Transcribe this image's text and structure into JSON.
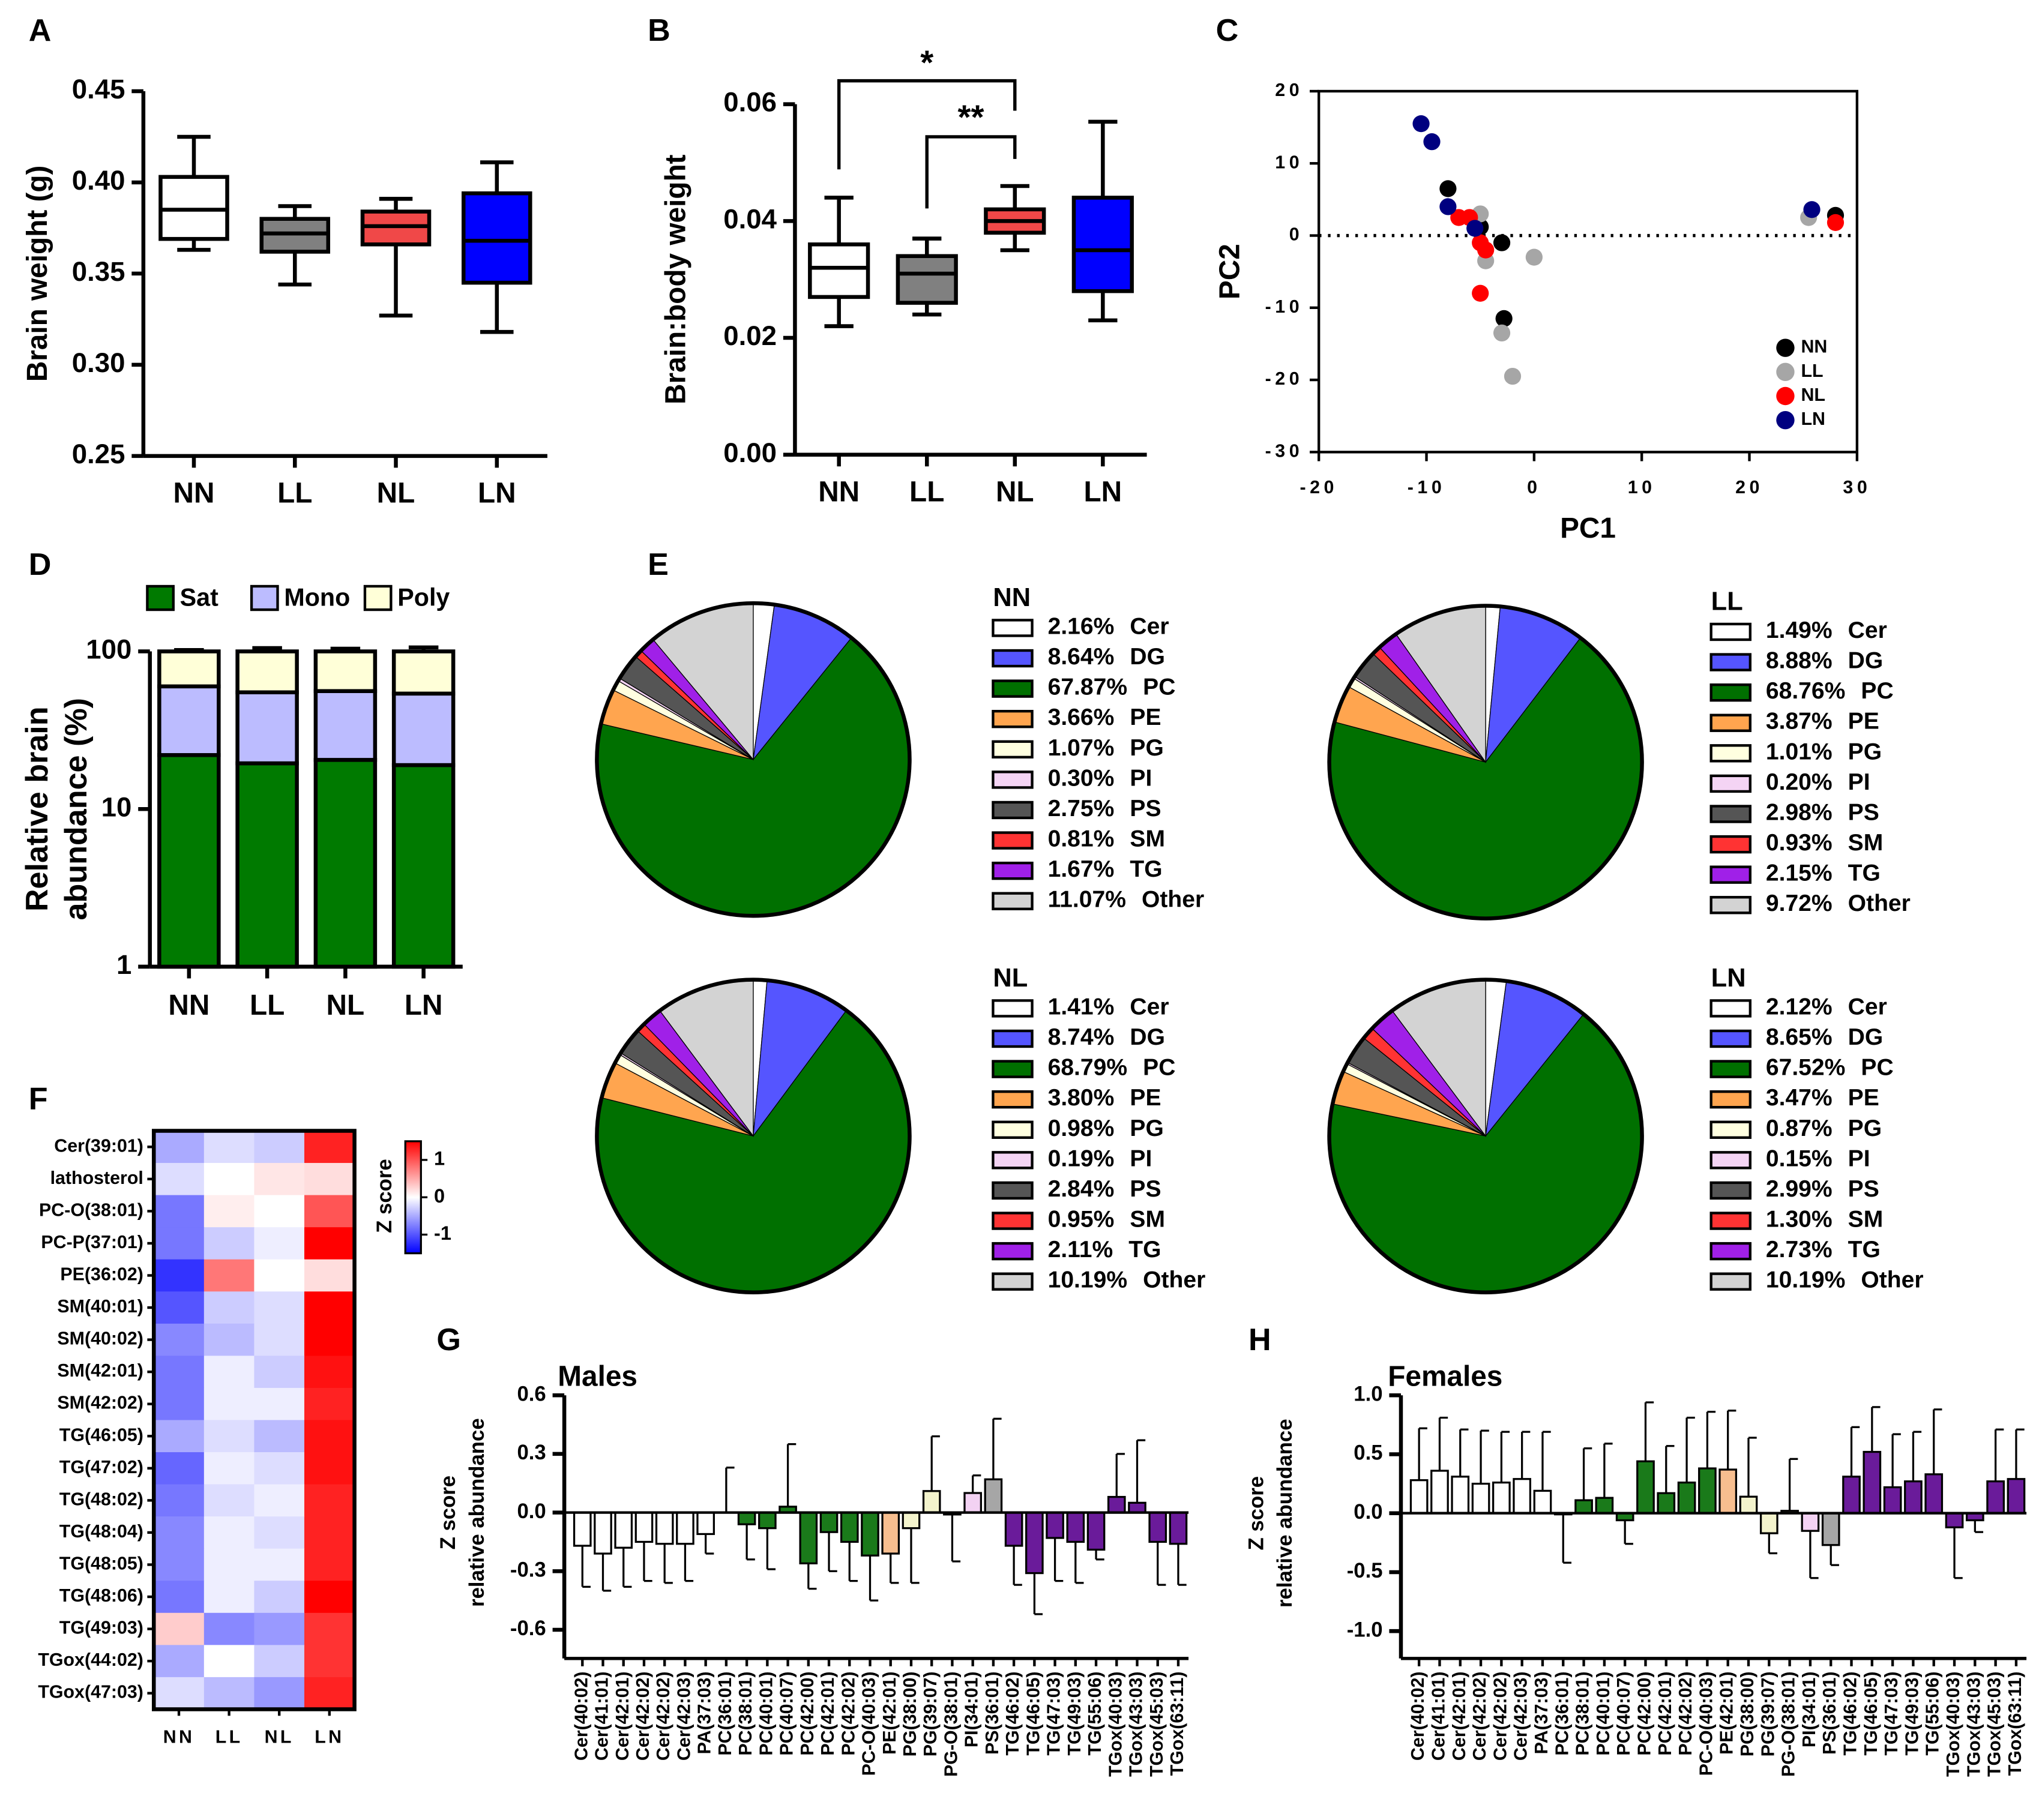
{
  "chart_data": [
    {
      "type": "box",
      "panel": "A",
      "ylabel": "Brain weight (g)",
      "categories": [
        "NN",
        "LL",
        "NL",
        "LN"
      ],
      "colors": [
        "#ffffff",
        "#808080",
        "#f04848",
        "#0000ff"
      ],
      "boxes": [
        {
          "min": 0.363,
          "q1": 0.369,
          "median": 0.385,
          "q3": 0.403,
          "max": 0.425
        },
        {
          "min": 0.344,
          "q1": 0.362,
          "median": 0.372,
          "q3": 0.38,
          "max": 0.387
        },
        {
          "min": 0.327,
          "q1": 0.366,
          "median": 0.376,
          "q3": 0.384,
          "max": 0.391
        },
        {
          "min": 0.318,
          "q1": 0.345,
          "median": 0.368,
          "q3": 0.394,
          "max": 0.411
        }
      ],
      "ylim": [
        0.25,
        0.45
      ],
      "yticks": [
        {
          "value": 0.25,
          "label": "0.25"
        },
        {
          "value": 0.3,
          "label": "0.30"
        },
        {
          "value": 0.35,
          "label": "0.35"
        },
        {
          "value": 0.4,
          "label": "0.40"
        },
        {
          "value": 0.45,
          "label": "0.45"
        }
      ]
    },
    {
      "type": "box",
      "panel": "B",
      "ylabel": "Brain:body weight",
      "categories": [
        "NN",
        "LL",
        "NL",
        "LN"
      ],
      "colors": [
        "#ffffff",
        "#808080",
        "#f04848",
        "#0000ff"
      ],
      "boxes": [
        {
          "min": 0.022,
          "q1": 0.027,
          "median": 0.032,
          "q3": 0.036,
          "max": 0.044
        },
        {
          "min": 0.024,
          "q1": 0.026,
          "median": 0.031,
          "q3": 0.034,
          "max": 0.037
        },
        {
          "min": 0.035,
          "q1": 0.038,
          "median": 0.04,
          "q3": 0.042,
          "max": 0.046
        },
        {
          "min": 0.023,
          "q1": 0.028,
          "median": 0.035,
          "q3": 0.044,
          "max": 0.057
        }
      ],
      "annotations": [
        "*",
        "**"
      ],
      "ylim": [
        0,
        0.06
      ],
      "yticks": [
        {
          "value": 0,
          "label": "0.00"
        },
        {
          "value": 0.02,
          "label": "0.02"
        },
        {
          "value": 0.04,
          "label": "0.04"
        },
        {
          "value": 0.06,
          "label": "0.06"
        }
      ]
    },
    {
      "type": "scatter",
      "panel": "C",
      "xlabel": "PC1",
      "ylabel": "PC2",
      "series": [
        {
          "name": "NN",
          "color": "#000000",
          "x": [
            -8,
            -5,
            -3,
            -2.8,
            28
          ],
          "y": [
            6.5,
            1.2,
            -1,
            -11.5,
            2.8
          ]
        },
        {
          "name": "LL",
          "color": "#a6a6a6",
          "x": [
            -5,
            -4.5,
            -3,
            -2,
            0,
            25.5
          ],
          "y": [
            3,
            -3.5,
            -13.5,
            -19.5,
            -3,
            2.5
          ]
        },
        {
          "name": "NL",
          "color": "#ff0000",
          "x": [
            -7,
            -6,
            -5,
            -4.5,
            -5,
            28
          ],
          "y": [
            2.5,
            2.5,
            -1,
            -2,
            -8,
            1.8
          ]
        },
        {
          "name": "LN",
          "color": "#000080",
          "x": [
            -10.5,
            -9.5,
            -8,
            -5.5,
            25.8
          ],
          "y": [
            15.5,
            13,
            4,
            1,
            3.6
          ]
        }
      ],
      "xlim": [
        -20,
        30
      ],
      "xticks": [
        -20,
        -10,
        0,
        10,
        20,
        30
      ],
      "ylim": [
        -30,
        20
      ],
      "yticks": [
        -30,
        -20,
        -10,
        0,
        10,
        20
      ],
      "legend": "lower right",
      "zero_line": true
    },
    {
      "type": "stacked_bar",
      "panel": "D",
      "ylabel": [
        "Relative brain",
        "abundance (%)"
      ],
      "categories": [
        "NN",
        "LL",
        "NL",
        "LN"
      ],
      "series": [
        {
          "name": "Sat",
          "color": "#007a00",
          "values": [
            22,
            19.5,
            20.5,
            19
          ],
          "errors": [
            2,
            1.2,
            1,
            1
          ]
        },
        {
          "name": "Mono",
          "color": "#bcbcff",
          "values": [
            38,
            35.5,
            35.5,
            35
          ],
          "errors": [
            3,
            5,
            5,
            6
          ]
        },
        {
          "name": "Poly",
          "color": "#ffffd8",
          "values": [
            40,
            45,
            44,
            46
          ],
          "errors": [
            2,
            5,
            4,
            6
          ]
        }
      ],
      "ylim": [
        1,
        100
      ],
      "yticks": [
        1,
        10,
        100
      ],
      "log_y": true,
      "legend": "top"
    },
    {
      "type": "pie",
      "panel": "E",
      "title": "NN",
      "categories": [
        "Cer",
        "DG",
        "PC",
        "PE",
        "PG",
        "PI",
        "PS",
        "SM",
        "TG",
        "Other"
      ],
      "values": [
        2.16,
        8.64,
        67.87,
        3.66,
        1.07,
        0.3,
        2.75,
        0.81,
        1.67,
        11.07
      ],
      "value_labels": [
        "2.16%",
        "8.64%",
        "67.87%",
        "3.66%",
        "1.07%",
        "0.30%",
        "2.75%",
        "0.81%",
        "1.67%",
        "11.07%"
      ],
      "colors": [
        "#ffffff",
        "#5555ff",
        "#007000",
        "#ffa54f",
        "#ffffe0",
        "#f4d4f4",
        "#555555",
        "#ff3333",
        "#a020e8",
        "#d3d3d3"
      ]
    },
    {
      "type": "pie",
      "title": "LL",
      "categories": [
        "Cer",
        "DG",
        "PC",
        "PE",
        "PG",
        "PI",
        "PS",
        "SM",
        "TG",
        "Other"
      ],
      "values": [
        1.49,
        8.88,
        68.76,
        3.87,
        1.01,
        0.2,
        2.98,
        0.93,
        2.15,
        9.72
      ],
      "value_labels": [
        "1.49%",
        "8.88%",
        "68.76%",
        "3.87%",
        "1.01%",
        "0.20%",
        "2.98%",
        "0.93%",
        "2.15%",
        "9.72%"
      ],
      "colors": [
        "#ffffff",
        "#5555ff",
        "#007000",
        "#ffa54f",
        "#ffffe0",
        "#f4d4f4",
        "#555555",
        "#ff3333",
        "#a020e8",
        "#d3d3d3"
      ]
    },
    {
      "type": "pie",
      "title": "NL",
      "categories": [
        "Cer",
        "DG",
        "PC",
        "PE",
        "PG",
        "PI",
        "PS",
        "SM",
        "TG",
        "Other"
      ],
      "values": [
        1.41,
        8.74,
        68.79,
        3.8,
        0.98,
        0.19,
        2.84,
        0.95,
        2.11,
        10.19
      ],
      "value_labels": [
        "1.41%",
        "8.74%",
        "68.79%",
        "3.80%",
        "0.98%",
        "0.19%",
        "2.84%",
        "0.95%",
        "2.11%",
        "10.19%"
      ],
      "colors": [
        "#ffffff",
        "#5555ff",
        "#007000",
        "#ffa54f",
        "#ffffe0",
        "#f4d4f4",
        "#555555",
        "#ff3333",
        "#a020e8",
        "#d3d3d3"
      ]
    },
    {
      "type": "pie",
      "title": "LN",
      "categories": [
        "Cer",
        "DG",
        "PC",
        "PE",
        "PG",
        "PI",
        "PS",
        "SM",
        "TG",
        "Other"
      ],
      "values": [
        2.12,
        8.65,
        67.52,
        3.47,
        0.87,
        0.15,
        2.99,
        1.3,
        2.73,
        10.19
      ],
      "value_labels": [
        "2.12%",
        "8.65%",
        "67.52%",
        "3.47%",
        "0.87%",
        "0.15%",
        "2.99%",
        "1.30%",
        "2.73%",
        "10.19%"
      ],
      "colors": [
        "#ffffff",
        "#5555ff",
        "#007000",
        "#ffa54f",
        "#ffffe0",
        "#f4d4f4",
        "#555555",
        "#ff3333",
        "#a020e8",
        "#d3d3d3"
      ]
    },
    {
      "type": "heatmap",
      "panel": "F",
      "colorbar_label": "Z score",
      "columns": [
        "NN",
        "LL",
        "NL",
        "LN"
      ],
      "rows": [
        "Cer(39:01)",
        "lathosterol",
        "PC-O(38:01)",
        "PC-P(37:01)",
        "PE(36:02)",
        "SM(40:01)",
        "SM(40:02)",
        "SM(42:01)",
        "SM(42:02)",
        "TG(46:05)",
        "TG(47:02)",
        "TG(48:02)",
        "TG(48:04)",
        "TG(48:05)",
        "TG(48:06)",
        "TG(49:03)",
        "TGox(44:02)",
        "TGox(47:03)"
      ],
      "values": [
        [
          -0.5,
          -0.2,
          -0.3,
          1.3
        ],
        [
          -0.2,
          0,
          0.15,
          0.2
        ],
        [
          -0.8,
          0.1,
          0,
          1.0
        ],
        [
          -0.8,
          -0.3,
          -0.1,
          1.5
        ],
        [
          -1.2,
          0.8,
          0,
          0.2
        ],
        [
          -1.0,
          -0.3,
          -0.2,
          1.6
        ],
        [
          -0.7,
          -0.4,
          -0.2,
          1.5
        ],
        [
          -0.8,
          -0.1,
          -0.3,
          1.4
        ],
        [
          -0.8,
          -0.1,
          -0.1,
          1.3
        ],
        [
          -0.5,
          -0.2,
          -0.4,
          1.4
        ],
        [
          -0.9,
          -0.1,
          -0.2,
          1.4
        ],
        [
          -0.8,
          -0.2,
          -0.1,
          1.3
        ],
        [
          -0.7,
          -0.1,
          -0.2,
          1.3
        ],
        [
          -0.7,
          -0.1,
          -0.1,
          1.3
        ],
        [
          -0.8,
          -0.1,
          -0.3,
          1.5
        ],
        [
          0.3,
          -0.7,
          -0.6,
          1.2
        ],
        [
          -0.5,
          0,
          -0.3,
          1.2
        ],
        [
          -0.2,
          -0.4,
          -0.6,
          1.3
        ]
      ],
      "zlim": [
        -1.5,
        1.5
      ],
      "zticks": [
        1,
        0,
        -1
      ]
    },
    {
      "type": "bar",
      "panel": "G",
      "title": "Males",
      "ylabel": [
        "Z score",
        "relative abundance"
      ],
      "categories": [
        "Cer(40:02)",
        "Cer(41:01)",
        "Cer(42:01)",
        "Cer(42:02)",
        "Cer(42:02)",
        "Cer(42:03)",
        "PA(37:03)",
        "PC(36:01)",
        "PC(38:01)",
        "PC(40:01)",
        "PC(40:07)",
        "PC(42:00)",
        "PC(42:01)",
        "PC(42:02)",
        "PC-O(40:03)",
        "PE(42:01)",
        "PG(38:00)",
        "PG(39:07)",
        "PG-O(38:01)",
        "PI(34:01)",
        "PS(36:01)",
        "TG(46:02)",
        "TG(46:05)",
        "TG(47:03)",
        "TG(49:03)",
        "TG(55:06)",
        "TGox(40:03)",
        "TGox(43:03)",
        "TGox(45:03)",
        "TGox(63:11)"
      ],
      "values": [
        -0.17,
        -0.21,
        -0.18,
        -0.15,
        -0.16,
        -0.16,
        -0.11,
        0,
        -0.06,
        -0.08,
        0.03,
        -0.26,
        -0.1,
        -0.15,
        -0.22,
        -0.21,
        -0.08,
        0.11,
        -0.01,
        0.1,
        0.17,
        -0.17,
        -0.31,
        -0.13,
        -0.15,
        -0.19,
        0.08,
        0.05,
        -0.15,
        -0.16
      ],
      "errors": [
        0.21,
        0.19,
        0.2,
        0.2,
        0.2,
        0.19,
        0.1,
        0.23,
        0.18,
        0.21,
        0.32,
        0.13,
        0.2,
        0.2,
        0.23,
        0.15,
        0.28,
        0.28,
        0.24,
        0.09,
        0.31,
        0.2,
        0.21,
        0.22,
        0.21,
        0.05,
        0.22,
        0.32,
        0.22,
        0.21
      ],
      "colors": [
        "#ffffff",
        "#ffffff",
        "#ffffff",
        "#ffffff",
        "#ffffff",
        "#ffffff",
        "#ffffff",
        "#1a7a1a",
        "#1a7a1a",
        "#1a7a1a",
        "#1a7a1a",
        "#1a7a1a",
        "#1a7a1a",
        "#1a7a1a",
        "#1a7a1a",
        "#f7be8f",
        "#f3f3cc",
        "#f3f3cc",
        "#f3f3cc",
        "#f3d2f3",
        "#a6a6a6",
        "#6a1b9a",
        "#6a1b9a",
        "#6a1b9a",
        "#6a1b9a",
        "#6a1b9a",
        "#6a1b9a",
        "#6a1b9a",
        "#6a1b9a",
        "#6a1b9a"
      ],
      "ylim": [
        -0.6,
        0.6
      ],
      "yticks": [
        0.6,
        0.3,
        {
          "value": 0,
          "label": "0.0"
        },
        -0.3,
        -0.6
      ]
    },
    {
      "type": "bar",
      "panel": "H",
      "title": "Females",
      "ylabel": [
        "Z score",
        "relative abundance"
      ],
      "categories": [
        "Cer(40:02)",
        "Cer(41:01)",
        "Cer(42:01)",
        "Cer(42:02)",
        "Cer(42:02)",
        "Cer(42:03)",
        "PA(37:03)",
        "PC(36:01)",
        "PC(38:01)",
        "PC(40:01)",
        "PC(40:07)",
        "PC(42:00)",
        "PC(42:01)",
        "PC(42:02)",
        "PC-O(40:03)",
        "PE(42:01)",
        "PG(38:00)",
        "PG(39:07)",
        "PG-O(38:01)",
        "PI(34:01)",
        "PS(36:01)",
        "TG(46:02)",
        "TG(46:05)",
        "TG(47:03)",
        "TG(49:03)",
        "TG(55:06)",
        "TGox(40:03)",
        "TGox(43:03)",
        "TGox(45:03)",
        "TGox(63:11)"
      ],
      "values": [
        0.28,
        0.36,
        0.31,
        0.25,
        0.26,
        0.29,
        0.19,
        -0.01,
        0.11,
        0.13,
        -0.06,
        0.44,
        0.17,
        0.26,
        0.38,
        0.37,
        0.14,
        -0.17,
        0.02,
        -0.15,
        -0.27,
        0.31,
        0.52,
        0.22,
        0.27,
        0.33,
        -0.12,
        -0.06,
        0.27,
        0.29
      ],
      "errors": [
        0.44,
        0.45,
        0.4,
        0.45,
        0.43,
        0.4,
        0.5,
        0.41,
        0.44,
        0.46,
        0.2,
        0.5,
        0.4,
        0.55,
        0.48,
        0.5,
        0.5,
        0.17,
        0.44,
        0.4,
        0.17,
        0.42,
        0.38,
        0.45,
        0.42,
        0.55,
        0.43,
        0.1,
        0.44,
        0.42
      ],
      "colors": [
        "#ffffff",
        "#ffffff",
        "#ffffff",
        "#ffffff",
        "#ffffff",
        "#ffffff",
        "#ffffff",
        "#1a7a1a",
        "#1a7a1a",
        "#1a7a1a",
        "#1a7a1a",
        "#1a7a1a",
        "#1a7a1a",
        "#1a7a1a",
        "#1a7a1a",
        "#f7be8f",
        "#f3f3cc",
        "#f3f3cc",
        "#f3f3cc",
        "#f3d2f3",
        "#a6a6a6",
        "#6a1b9a",
        "#6a1b9a",
        "#6a1b9a",
        "#6a1b9a",
        "#6a1b9a",
        "#6a1b9a",
        "#6a1b9a",
        "#6a1b9a",
        "#6a1b9a"
      ],
      "ylim": [
        -1,
        1
      ],
      "yticks": [
        {
          "value": 1,
          "label": "1.0"
        },
        0.5,
        {
          "value": 0,
          "label": "0.0"
        },
        -0.5,
        {
          "value": -1,
          "label": "-1.0"
        }
      ]
    }
  ]
}
